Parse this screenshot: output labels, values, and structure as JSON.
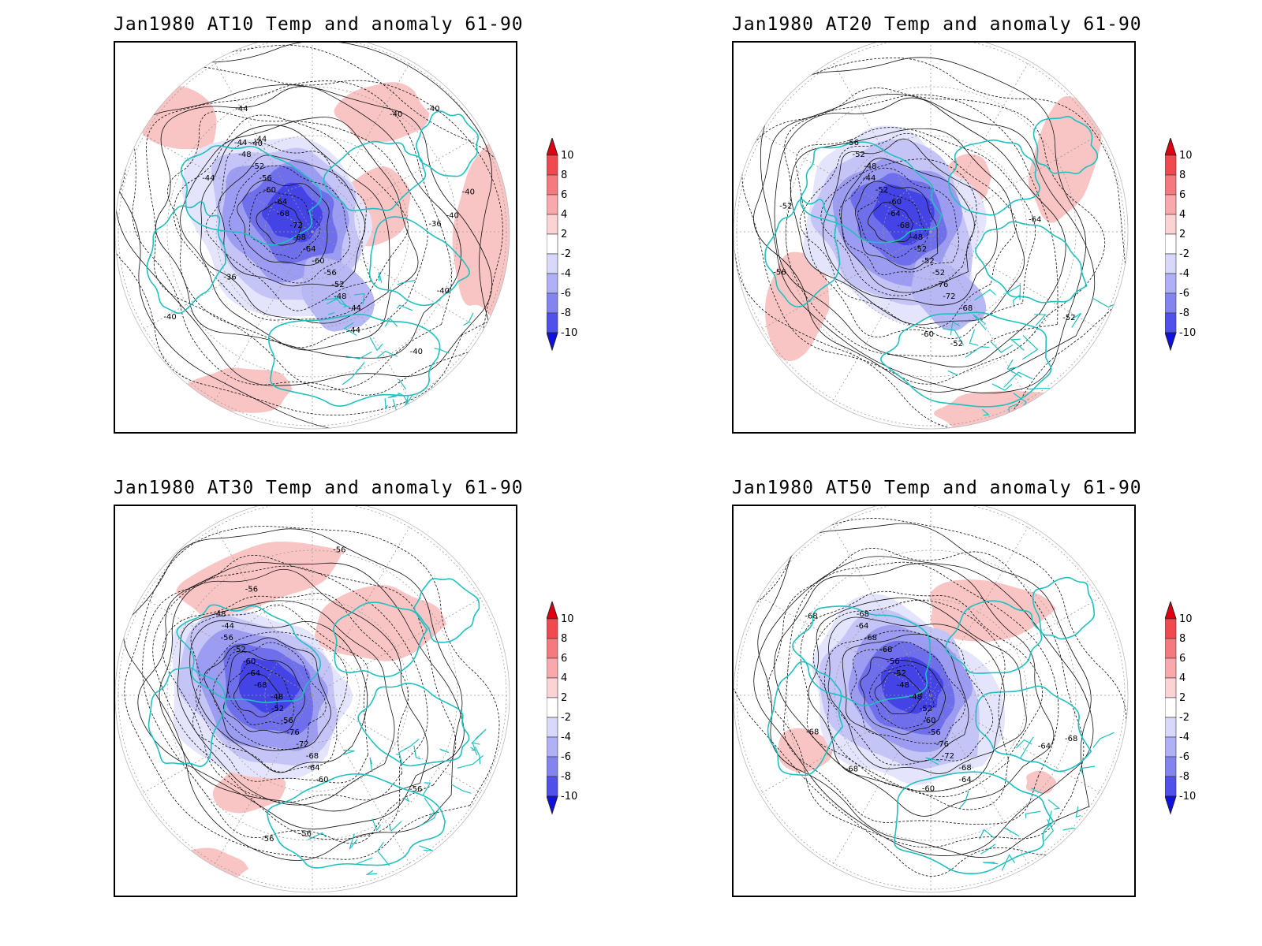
{
  "panels": [
    {
      "id": "at10",
      "title": "Jan1980 AT10 Temp and anomaly 61-90",
      "contour_labels": [
        "-44",
        "-48",
        "-52",
        "-56",
        "-60",
        "-64",
        "-68",
        "-72",
        "-68",
        "-64",
        "-60",
        "-56",
        "-52",
        "-48",
        "-44",
        "-40",
        "-40",
        "-40",
        "-40",
        "-40",
        "-36",
        "-36",
        "-40",
        "-44",
        "-44",
        "-44",
        "-40",
        "-40",
        "-44"
      ]
    },
    {
      "id": "at20",
      "title": "Jan1980 AT20 Temp and anomaly 61-90",
      "contour_labels": [
        "-56",
        "-52",
        "-48",
        "-44",
        "-52",
        "-60",
        "-64",
        "-68",
        "-48",
        "-52",
        "-52",
        "-52",
        "-76",
        "-72",
        "-68",
        "-64",
        "-60",
        "-56",
        "-52",
        "-52",
        "-52"
      ]
    },
    {
      "id": "at30",
      "title": "Jan1980 AT30 Temp and anomaly 61-90",
      "contour_labels": [
        "-48",
        "-44",
        "-56",
        "-52",
        "-60",
        "-64",
        "-68",
        "-48",
        "-52",
        "-56",
        "-76",
        "-72",
        "-68",
        "-64",
        "-60",
        "-56",
        "-56",
        "-56",
        "-56",
        "-56"
      ]
    },
    {
      "id": "at50",
      "title": "Jan1980 AT50 Temp and anomaly 61-90",
      "contour_labels": [
        "-68",
        "-64",
        "-68",
        "-68",
        "-56",
        "-52",
        "-48",
        "-48",
        "-52",
        "-60",
        "-56",
        "-76",
        "-72",
        "-68",
        "-64",
        "-60",
        "-68",
        "-64",
        "-68",
        "-68",
        "-68"
      ]
    }
  ],
  "colorbar": {
    "labels": [
      "10",
      "8",
      "6",
      "4",
      "2",
      "-2",
      "-4",
      "-6",
      "-8",
      "-10"
    ],
    "colors": [
      "#e8101a",
      "#f04a50",
      "#f57a7e",
      "#f9a9ab",
      "#fcd3d4",
      "#ffffff",
      "#d8d8fb",
      "#b0b0f6",
      "#8484f0",
      "#5050ea",
      "#1e1ee4"
    ],
    "arrow_top_color": "#e00010",
    "arrow_bottom_color": "#1010e0"
  },
  "colors": {
    "coastline": "#20c0c0",
    "contour": "#000000",
    "positive_anomaly": "#f9c4c4",
    "negative_anomaly": "#4848e8"
  }
}
